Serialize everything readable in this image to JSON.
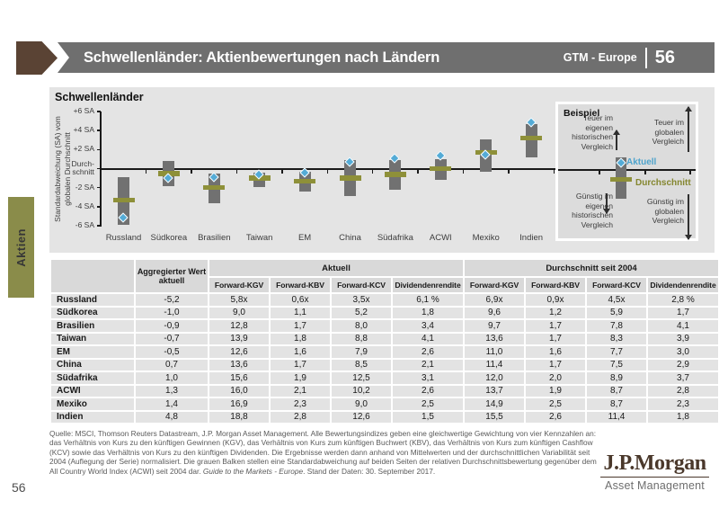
{
  "header": {
    "title": "Schwellenländer: Aktienbewertungen nach Ländern",
    "brand": "GTM - Europe",
    "page": "56"
  },
  "sidebar": {
    "tab_label": "Aktien"
  },
  "colors": {
    "header_bar": "#6f6f6f",
    "header_arrow_brown": "#5a4334",
    "accent_olive_tab": "#8a8c4a",
    "dash_olive": "#8e9039",
    "bar_gray": "#717171",
    "diamond_blue": "#54abd6",
    "chart_bg": "#e4e4e4",
    "legend_box_bg": "#dcdcdc",
    "table_header_bg": "#d9d9d9",
    "table_row_bg": "#e3e3e3",
    "logo_brown": "#4a382b"
  },
  "chart_data": {
    "type": "bar",
    "title": "Schwellenländer",
    "ylabel": "Standardabweichung (SA) vom globalen Durchschnitt",
    "ylim": [
      -6,
      6
    ],
    "grid": false,
    "legend_position": "right-overlay",
    "y_tick_values": [
      6,
      4,
      2,
      0,
      -2,
      -4,
      -6
    ],
    "y_tick_labels": [
      "+6 SA",
      "+4 SA",
      "+2 SA",
      "Durch-\nschnitt",
      "-2 SA",
      "-4 SA",
      "-6 SA"
    ],
    "categories": [
      "Russland",
      "Südkorea",
      "Brasilien",
      "Taiwan",
      "EM",
      "China",
      "Südafrika",
      "ACWI",
      "Mexiko",
      "Indien"
    ],
    "series": [
      {
        "name": "Band oben (+1 SA)",
        "values": [
          -0.9,
          0.8,
          -0.5,
          -0.4,
          -0.3,
          0.9,
          0.85,
          1.0,
          3.1,
          4.7
        ]
      },
      {
        "name": "Band unten (-1 SA)",
        "values": [
          -5.9,
          -1.8,
          -3.6,
          -1.9,
          -2.4,
          -2.9,
          -2.2,
          -1.2,
          -0.3,
          1.2
        ]
      },
      {
        "name": "Durchschnitt",
        "values": [
          -3.3,
          -0.5,
          -2.0,
          -1.0,
          -1.3,
          -1.0,
          -0.6,
          0.0,
          1.7,
          3.2
        ]
      },
      {
        "name": "Aktuell",
        "values": [
          -5.2,
          -1.0,
          -0.9,
          -0.7,
          -0.5,
          0.7,
          1.0,
          1.3,
          1.4,
          4.8
        ]
      }
    ]
  },
  "beispiel": {
    "title": "Beispiel",
    "teuer_eigen": "Teuer im\neigenen\nhistorischen\nVergleich",
    "teuer_global": "Teuer im\nglobalen\nVergleich",
    "guenstig_eigen": "Günstig im\neigenen\nhistorischen\nVergleich",
    "guenstig_global": "Günstig im\nglobalen\nVergleich",
    "aktuell_label": "Aktuell",
    "durchschnitt_label": "Durchschnitt"
  },
  "table": {
    "agg_header": "Aggregierter Wert aktuell",
    "group_aktuell": "Aktuell",
    "group_durchschnitt": "Durchschnitt seit 2004",
    "sub_headers": [
      "Forward-KGV",
      "Forward-KBV",
      "Forward-KCV",
      "Dividendenrendite",
      "Forward-KGV",
      "Forward-KBV",
      "Forward-KCV",
      "Dividendenrendite"
    ],
    "rows": [
      {
        "country": "Russland",
        "values": [
          "-5,2",
          "5,8x",
          "0,6x",
          "3,5x",
          "6,1 %",
          "6,9x",
          "0,9x",
          "4,5x",
          "2,8 %"
        ]
      },
      {
        "country": "Südkorea",
        "values": [
          "-1,0",
          "9,0",
          "1,1",
          "5,2",
          "1,8",
          "9,6",
          "1,2",
          "5,9",
          "1,7"
        ]
      },
      {
        "country": "Brasilien",
        "values": [
          "-0,9",
          "12,8",
          "1,7",
          "8,0",
          "3,4",
          "9,7",
          "1,7",
          "7,8",
          "4,1"
        ]
      },
      {
        "country": "Taiwan",
        "values": [
          "-0,7",
          "13,9",
          "1,8",
          "8,8",
          "4,1",
          "13,6",
          "1,7",
          "8,3",
          "3,9"
        ]
      },
      {
        "country": "EM",
        "values": [
          "-0,5",
          "12,6",
          "1,6",
          "7,9",
          "2,6",
          "11,0",
          "1,6",
          "7,7",
          "3,0"
        ]
      },
      {
        "country": "China",
        "values": [
          "0,7",
          "13,6",
          "1,7",
          "8,5",
          "2,1",
          "11,4",
          "1,7",
          "7,5",
          "2,9"
        ]
      },
      {
        "country": "Südafrika",
        "values": [
          "1,0",
          "15,6",
          "1,9",
          "12,5",
          "3,1",
          "12,0",
          "2,0",
          "8,9",
          "3,7"
        ]
      },
      {
        "country": "ACWI",
        "values": [
          "1,3",
          "16,0",
          "2,1",
          "10,2",
          "2,6",
          "13,7",
          "1,9",
          "8,7",
          "2,8"
        ]
      },
      {
        "country": "Mexiko",
        "values": [
          "1,4",
          "16,9",
          "2,3",
          "9,0",
          "2,5",
          "14,9",
          "2,5",
          "8,7",
          "2,3"
        ]
      },
      {
        "country": "Indien",
        "values": [
          "4,8",
          "18,8",
          "2,8",
          "12,6",
          "1,5",
          "15,5",
          "2,6",
          "11,4",
          "1,8"
        ]
      }
    ]
  },
  "footer": {
    "source_before": "Quelle: MSCI, Thomson Reuters Datastream, J.P. Morgan Asset Management. Alle Bewertungsindizes geben eine gleichwertige Gewichtung von vier Kennzahlen an: das Verhältnis von Kurs zu den künftigen Gewinnen (KGV), das Verhältnis von Kurs zum künftigen Buchwert (KBV), das Verhältnis von Kurs zum künftigen Cashflow (KCV) sowie das Verhältnis von Kurs zu den künftigen Dividenden. Die Ergebnisse werden dann anhand von Mittelwerten und der durchschnittlichen Variabilität seit 2004 (Auflegung der Serie) normalisiert. Die grauen Balken stellen eine Standardabweichung auf beiden Seiten der relativen Durchschnittsbewertung gegenüber dem All Country World Index (ACWI) seit 2004 dar. ",
    "source_italic": "Guide to the Markets - Europe",
    "source_after": ". Stand der Daten: 30. September 2017.",
    "page_number": "56"
  },
  "logo": {
    "name": "J.P.Morgan",
    "sub": "Asset Management"
  }
}
